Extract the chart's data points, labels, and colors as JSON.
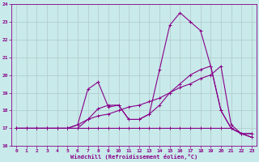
{
  "xlabel": "Windchill (Refroidissement éolien,°C)",
  "xlim": [
    -0.5,
    23.5
  ],
  "ylim": [
    16,
    24
  ],
  "xticks": [
    0,
    1,
    2,
    3,
    4,
    5,
    6,
    7,
    8,
    9,
    10,
    11,
    12,
    13,
    14,
    15,
    16,
    17,
    18,
    19,
    20,
    21,
    22,
    23
  ],
  "yticks": [
    16,
    17,
    18,
    19,
    20,
    21,
    22,
    23,
    24
  ],
  "background_color": "#c8eaea",
  "line_color": "#880088",
  "grid_color": "#b0c8c8",
  "line1_y": [
    17.0,
    17.0,
    17.0,
    17.0,
    17.0,
    17.0,
    17.0,
    17.0,
    17.0,
    17.0,
    17.0,
    17.0,
    17.0,
    17.0,
    17.0,
    17.0,
    17.0,
    17.0,
    17.0,
    17.0,
    17.0,
    17.0,
    16.7,
    16.7
  ],
  "line2_y": [
    17.0,
    17.0,
    17.0,
    17.0,
    17.0,
    17.0,
    17.0,
    17.5,
    17.7,
    17.8,
    18.0,
    18.2,
    18.3,
    18.5,
    18.7,
    19.0,
    19.3,
    19.5,
    19.8,
    20.0,
    20.5,
    17.2,
    16.7,
    16.5
  ],
  "line3_y": [
    17.0,
    17.0,
    17.0,
    17.0,
    17.0,
    17.0,
    17.2,
    17.5,
    18.1,
    18.3,
    18.3,
    17.5,
    17.5,
    17.8,
    18.3,
    19.0,
    19.5,
    20.0,
    20.3,
    20.5,
    18.0,
    17.0,
    16.7,
    16.7
  ],
  "line4_y": [
    17.0,
    17.0,
    17.0,
    17.0,
    17.0,
    17.0,
    17.2,
    19.2,
    19.6,
    18.2,
    18.3,
    17.5,
    17.5,
    17.8,
    20.3,
    22.8,
    23.5,
    23.0,
    22.5,
    20.5,
    18.0,
    17.0,
    16.7,
    16.5
  ]
}
